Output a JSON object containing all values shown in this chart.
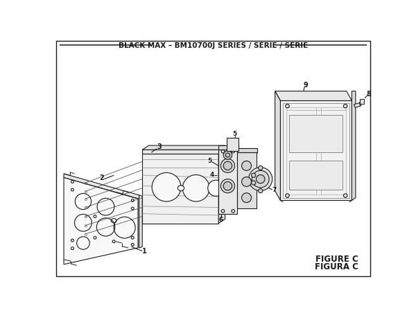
{
  "title": "BLACK MAX – BM10700J SERIES / SÉRIE / SERIE",
  "figure_label": "FIGURE C",
  "figura_label": "FIGURA C",
  "bg_color": "#ffffff",
  "line_color": "#1a1a1a",
  "fig_width": 6.0,
  "fig_height": 4.55,
  "dpi": 100,
  "xlim": [
    0,
    600
  ],
  "ylim": [
    0,
    455
  ]
}
